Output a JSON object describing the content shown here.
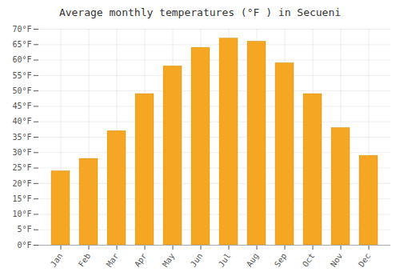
{
  "chart_data": {
    "type": "bar",
    "title": "Average monthly temperatures (°F ) in Secueni",
    "categories": [
      "Jan",
      "Feb",
      "Mar",
      "Apr",
      "May",
      "Jun",
      "Jul",
      "Aug",
      "Sep",
      "Oct",
      "Nov",
      "Dec"
    ],
    "values": [
      24,
      28,
      37,
      49,
      58,
      64,
      67,
      66,
      59,
      49,
      38,
      29
    ],
    "color": "#F5A623",
    "ylim": [
      0,
      70
    ],
    "yticks": [
      {
        "value": 0,
        "label": "0°F"
      },
      {
        "value": 5,
        "label": "5°F"
      },
      {
        "value": 10,
        "label": "10°F"
      },
      {
        "value": 15,
        "label": "15°F"
      },
      {
        "value": 20,
        "label": "20°F"
      },
      {
        "value": 25,
        "label": "25°F"
      },
      {
        "value": 30,
        "label": "30°F"
      },
      {
        "value": 35,
        "label": "35°F"
      },
      {
        "value": 40,
        "label": "40°F"
      },
      {
        "value": 45,
        "label": "45°F"
      },
      {
        "value": 50,
        "label": "50°F"
      },
      {
        "value": 55,
        "label": "55°F"
      },
      {
        "value": 60,
        "label": "60°F"
      },
      {
        "value": 65,
        "label": "65°F"
      },
      {
        "value": 70,
        "label": "70°F"
      }
    ],
    "grid": true
  }
}
